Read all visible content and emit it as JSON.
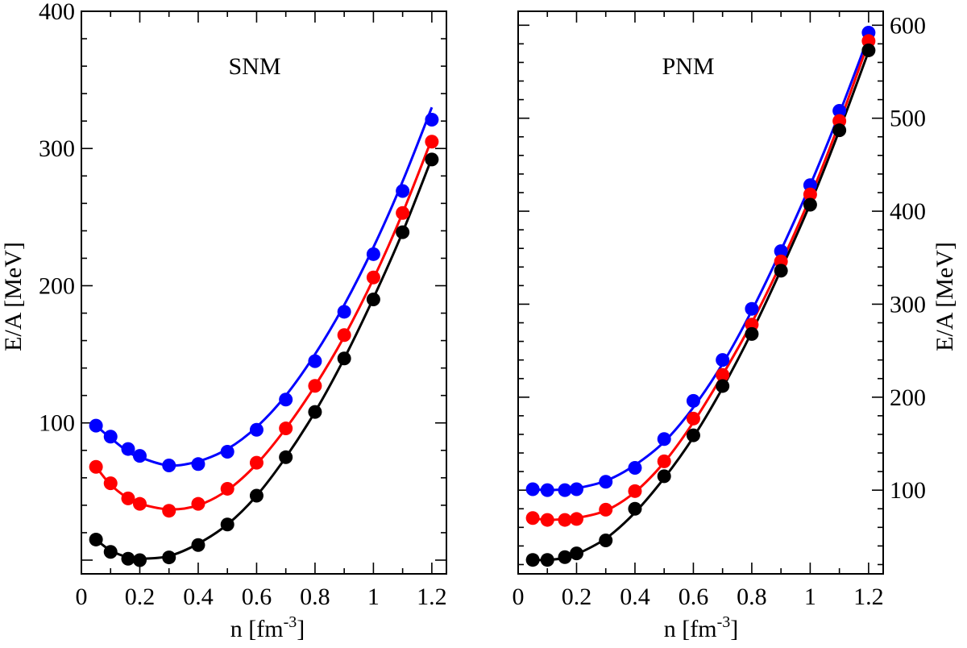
{
  "chart_data": [
    {
      "type": "scatter",
      "title": "SNM",
      "xlabel": "n [fm",
      "xlabel_sup": "-3",
      "xlabel_end": "]",
      "ylabel": "E/A [MeV]",
      "xlim": [
        0,
        1.25
      ],
      "ylim": [
        -10,
        400
      ],
      "xticks": [
        0,
        0.2,
        0.4,
        0.6,
        0.8,
        1,
        1.2
      ],
      "xtick_labels": [
        "0",
        "0.2",
        "0.4",
        "0.6",
        "0.8",
        "1",
        "1.2"
      ],
      "yticks": [
        100,
        200,
        300,
        400
      ],
      "ytick_labels": [
        "100",
        "200",
        "300",
        "400"
      ],
      "yaxis_side": "left",
      "x": [
        0.05,
        0.1,
        0.16,
        0.2,
        0.3,
        0.4,
        0.5,
        0.6,
        0.7,
        0.8,
        0.9,
        1.0,
        1.1,
        1.2
      ],
      "series": [
        {
          "color": "#0000ff",
          "points": [
            98,
            90,
            81,
            76,
            69,
            70,
            79,
            95,
            117,
            145,
            181,
            223,
            269,
            321
          ],
          "curve": [
            98,
            89,
            79,
            75,
            69,
            72,
            81,
            97,
            120,
            150,
            186,
            228,
            276,
            330
          ]
        },
        {
          "color": "#ff0000",
          "points": [
            68,
            56,
            45,
            41,
            36,
            41,
            52,
            71,
            96,
            127,
            164,
            206,
            253,
            305
          ],
          "curve": [
            68,
            55,
            45,
            41,
            37,
            40,
            51,
            70,
            96,
            127,
            163,
            205,
            253,
            307
          ]
        },
        {
          "color": "#000000",
          "points": [
            15,
            6,
            1,
            0,
            2,
            11,
            26,
            47,
            75,
            108,
            147,
            190,
            239,
            292
          ],
          "curve": [
            15,
            7,
            2,
            1,
            3,
            12,
            26,
            47,
            75,
            108,
            147,
            191,
            239,
            293
          ]
        }
      ]
    },
    {
      "type": "scatter",
      "title": "PNM",
      "xlabel": "n [fm",
      "xlabel_sup": "-3",
      "xlabel_end": "]",
      "ylabel": "E/A [MeV]",
      "xlim": [
        0,
        1.25
      ],
      "ylim": [
        10,
        615
      ],
      "xticks": [
        0,
        0.2,
        0.4,
        0.6,
        0.8,
        1,
        1.2
      ],
      "xtick_labels": [
        "0",
        "0.2",
        "0.4",
        "0.6",
        "0.8",
        "1",
        "1.2"
      ],
      "yticks": [
        100,
        200,
        300,
        400,
        500,
        600
      ],
      "ytick_labels": [
        "100",
        "200",
        "300",
        "400",
        "500",
        "600"
      ],
      "yaxis_side": "right",
      "x": [
        0.05,
        0.1,
        0.16,
        0.2,
        0.3,
        0.4,
        0.5,
        0.6,
        0.7,
        0.8,
        0.9,
        1.0,
        1.1,
        1.2
      ],
      "series": [
        {
          "color": "#0000ff",
          "points": [
            101,
            100,
            100,
            101,
            109,
            124,
            155,
            196,
            240,
            295,
            357,
            428,
            508,
            592
          ],
          "curve": [
            101,
            100,
            101,
            102,
            110,
            127,
            152,
            189,
            236,
            293,
            358,
            428,
            505,
            588
          ]
        },
        {
          "color": "#ff0000",
          "points": [
            70,
            68,
            68,
            69,
            79,
            99,
            131,
            177,
            224,
            278,
            346,
            418,
            497,
            583
          ],
          "curve": [
            70,
            68,
            69,
            70,
            78,
            98,
            130,
            173,
            224,
            280,
            344,
            415,
            495,
            582
          ]
        },
        {
          "color": "#000000",
          "points": [
            25,
            25,
            28,
            32,
            46,
            80,
            115,
            159,
            212,
            268,
            336,
            407,
            487,
            573
          ],
          "curve": [
            25,
            25,
            27,
            31,
            48,
            76,
            113,
            157,
            210,
            270,
            337,
            408,
            487,
            572
          ]
        }
      ]
    }
  ]
}
